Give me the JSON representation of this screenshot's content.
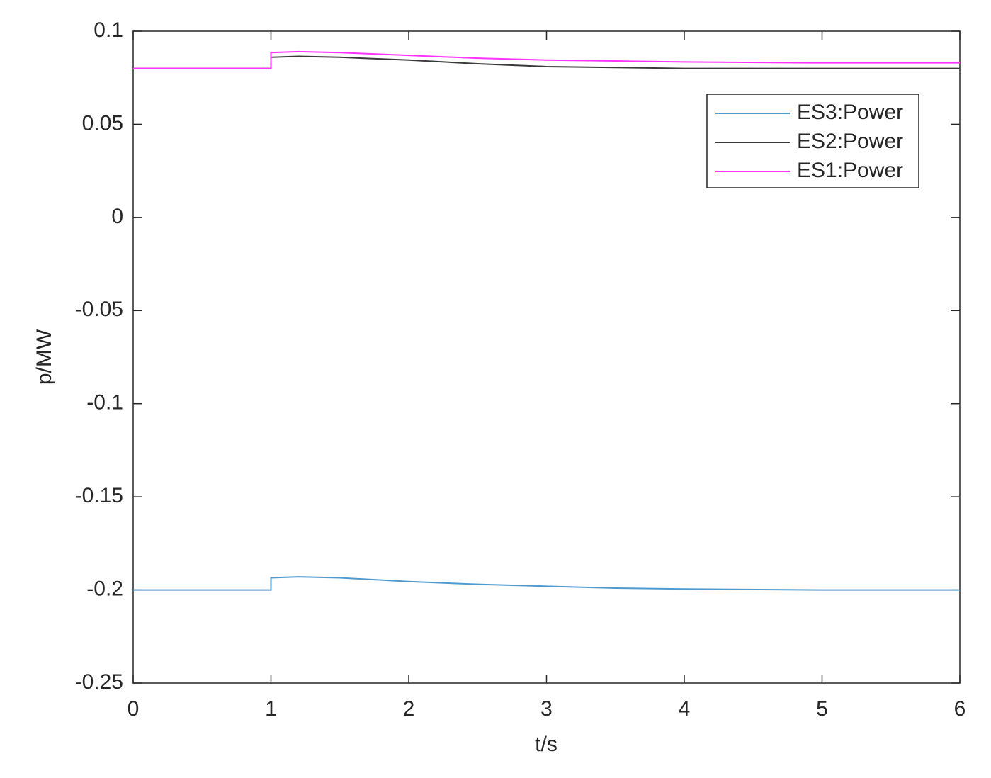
{
  "chart_data": {
    "type": "line",
    "xlabel": "t/s",
    "ylabel": "p/MW",
    "x": [
      0,
      1,
      1,
      1.2,
      1.5,
      2,
      2.5,
      3,
      3.5,
      4,
      5,
      6
    ],
    "series": [
      {
        "name": "ES3:Power",
        "color": "#4f9bd0",
        "values": [
          -0.2,
          -0.2,
          -0.1935,
          -0.193,
          -0.1935,
          -0.1955,
          -0.197,
          -0.198,
          -0.199,
          -0.1995,
          -0.2,
          -0.2
        ]
      },
      {
        "name": "ES2:Power",
        "color": "#3a3a3a",
        "values": [
          0.08,
          0.08,
          0.086,
          0.0865,
          0.086,
          0.0845,
          0.0825,
          0.081,
          0.0805,
          0.08,
          0.08,
          0.08
        ]
      },
      {
        "name": "ES1:Power",
        "color": "#ff33ff",
        "values": [
          0.08,
          0.08,
          0.0885,
          0.089,
          0.0885,
          0.087,
          0.0855,
          0.0845,
          0.084,
          0.0835,
          0.083,
          0.083
        ]
      }
    ],
    "xlim": [
      0,
      6
    ],
    "xticks": [
      0,
      1,
      2,
      3,
      4,
      5,
      6
    ],
    "ylim": [
      -0.25,
      0.1
    ],
    "yticks": [
      -0.25,
      -0.2,
      -0.15,
      -0.1,
      -0.05,
      0,
      0.05,
      0.1
    ],
    "legend": "upper right"
  }
}
